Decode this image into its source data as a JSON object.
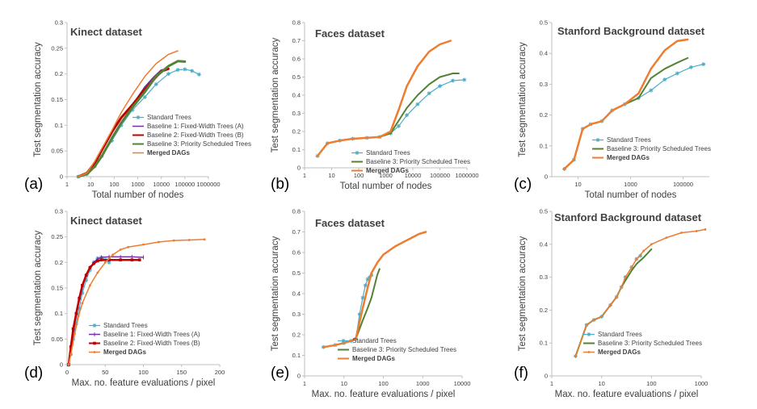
{
  "chart_data": [
    {
      "panel_label": "(a)",
      "title": "Kinect dataset",
      "type": "line",
      "xscale": "log",
      "xlim": [
        1,
        1000000
      ],
      "xticks": [
        1,
        10,
        100,
        1000,
        10000,
        100000,
        1000000
      ],
      "xtick_labels": [
        "1",
        "10",
        "100",
        "1000",
        "10000",
        "100000",
        "1000000"
      ],
      "ylim": [
        0,
        0.3
      ],
      "yticks": [
        0,
        0.05,
        0.1,
        0.15,
        0.2,
        0.25,
        0.3
      ],
      "ytick_labels": [
        "0",
        "0.05",
        "0.1",
        "0.15",
        "0.2",
        "0.25",
        "0.3"
      ],
      "xlabel": "Total number of nodes",
      "ylabel": "Test segmentation accuracy",
      "legend": "center-right",
      "series": [
        {
          "name": "Standard Trees",
          "color": "#4BACC6",
          "marker": "star",
          "width": 1.2,
          "x": [
            3,
            7,
            15,
            30,
            80,
            200,
            600,
            2000,
            6000,
            20000,
            50000,
            100000,
            200000,
            400000
          ],
          "y": [
            0,
            0.005,
            0.02,
            0.04,
            0.07,
            0.1,
            0.13,
            0.155,
            0.18,
            0.2,
            0.208,
            0.209,
            0.206,
            0.199
          ]
        },
        {
          "name": "Baseline 1: Fixed-Width Trees (A)",
          "color": "#7030A0",
          "marker": "none",
          "width": 1.5,
          "x": [
            3,
            7,
            15,
            30,
            80,
            200,
            600,
            2000,
            5000,
            10000,
            20000
          ],
          "y": [
            0,
            0.006,
            0.025,
            0.05,
            0.085,
            0.115,
            0.14,
            0.175,
            0.195,
            0.208,
            0.21
          ]
        },
        {
          "name": "Baseline 2: Fixed-Width Trees (B)",
          "color": "#C00000",
          "marker": "none",
          "width": 3,
          "x": [
            3,
            7,
            15,
            30,
            80,
            200,
            600,
            2000,
            5000,
            10000,
            20000
          ],
          "y": [
            0,
            0.007,
            0.027,
            0.052,
            0.087,
            0.115,
            0.14,
            0.17,
            0.19,
            0.205,
            0.21
          ]
        },
        {
          "name": "Baseline 3: Priority Scheduled Trees",
          "color": "#548235",
          "marker": "none",
          "width": 3,
          "x": [
            3,
            7,
            15,
            30,
            80,
            200,
            600,
            2000,
            6000,
            20000,
            50000,
            100000
          ],
          "y": [
            0,
            0.005,
            0.02,
            0.04,
            0.075,
            0.105,
            0.135,
            0.165,
            0.195,
            0.215,
            0.225,
            0.224
          ]
        },
        {
          "name": "Merged DAGs",
          "color": "#ED7D31",
          "marker": "none",
          "width": 1.5,
          "x": [
            3,
            7,
            15,
            30,
            80,
            200,
            600,
            2000,
            6000,
            20000,
            50000
          ],
          "y": [
            0,
            0.007,
            0.03,
            0.055,
            0.09,
            0.125,
            0.16,
            0.195,
            0.22,
            0.238,
            0.245
          ]
        }
      ]
    },
    {
      "panel_label": "(b)",
      "title": "Faces dataset",
      "type": "line",
      "xscale": "log",
      "xlim": [
        1,
        1000000
      ],
      "xticks": [
        1,
        10,
        100,
        1000,
        10000,
        100000,
        1000000
      ],
      "xtick_labels": [
        "1",
        "10",
        "100",
        "1000",
        "10000",
        "100000",
        "1000000"
      ],
      "ylim": [
        0,
        0.8
      ],
      "yticks": [
        0,
        0.1,
        0.2,
        0.3,
        0.4,
        0.5,
        0.6,
        0.7,
        0.8
      ],
      "ytick_labels": [
        "0",
        "0.1",
        "0.2",
        "0.3",
        "0.4",
        "0.5",
        "0.6",
        "0.7",
        "0.8"
      ],
      "xlabel": "Total number of nodes",
      "ylabel": "Test segmentation accuracy",
      "legend": "center-right",
      "series": [
        {
          "name": "Standard Trees",
          "color": "#4BACC6",
          "marker": "star",
          "width": 1.2,
          "x": [
            3,
            7,
            20,
            60,
            200,
            600,
            1500,
            3000,
            6000,
            15000,
            40000,
            100000,
            300000,
            800000
          ],
          "y": [
            0.065,
            0.135,
            0.15,
            0.16,
            0.165,
            0.17,
            0.19,
            0.23,
            0.29,
            0.35,
            0.41,
            0.45,
            0.48,
            0.485
          ]
        },
        {
          "name": "Baseline 3: Priority Scheduled Trees",
          "color": "#548235",
          "marker": "none",
          "width": 2,
          "x": [
            3,
            7,
            20,
            60,
            200,
            600,
            1500,
            3000,
            6000,
            15000,
            40000,
            100000,
            300000,
            500000
          ],
          "y": [
            0.065,
            0.135,
            0.15,
            0.16,
            0.165,
            0.17,
            0.19,
            0.26,
            0.33,
            0.4,
            0.46,
            0.5,
            0.52,
            0.52
          ]
        },
        {
          "name": "Merged DAGs",
          "color": "#ED7D31",
          "marker": "none",
          "width": 2.5,
          "x": [
            3,
            7,
            20,
            60,
            200,
            600,
            1500,
            3000,
            6000,
            15000,
            40000,
            100000,
            250000
          ],
          "y": [
            0.065,
            0.135,
            0.15,
            0.16,
            0.165,
            0.17,
            0.2,
            0.32,
            0.45,
            0.56,
            0.64,
            0.68,
            0.7
          ]
        }
      ]
    },
    {
      "panel_label": "(c)",
      "title": "Stanford Background dataset",
      "type": "line",
      "xscale": "log",
      "xlim": [
        1,
        1000000
      ],
      "xticks": [
        10,
        1000,
        100000
      ],
      "xtick_labels": [
        "10",
        "1000",
        "100000"
      ],
      "ylim": [
        0,
        0.5
      ],
      "yticks": [
        0,
        0.1,
        0.2,
        0.3,
        0.4,
        0.5
      ],
      "ytick_labels": [
        "0",
        "0.1",
        "0.2",
        "0.3",
        "0.4",
        "0.5"
      ],
      "xlabel": "Total number of nodes",
      "ylabel": "Test segmentation accuracy",
      "legend": "bottom-right",
      "series": [
        {
          "name": "Standard Trees",
          "color": "#4BACC6",
          "marker": "star",
          "width": 1.2,
          "x": [
            3,
            7,
            15,
            30,
            80,
            200,
            600,
            2000,
            6000,
            20000,
            60000,
            200000,
            600000
          ],
          "y": [
            0.025,
            0.055,
            0.155,
            0.17,
            0.18,
            0.215,
            0.235,
            0.255,
            0.28,
            0.315,
            0.335,
            0.355,
            0.365
          ]
        },
        {
          "name": "Baseline 3: Priority Scheduled Trees",
          "color": "#548235",
          "marker": "none",
          "width": 2,
          "x": [
            3,
            7,
            15,
            30,
            80,
            200,
            600,
            2000,
            6000,
            20000,
            60000,
            150000
          ],
          "y": [
            0.025,
            0.055,
            0.155,
            0.17,
            0.18,
            0.215,
            0.235,
            0.255,
            0.32,
            0.35,
            0.37,
            0.385
          ]
        },
        {
          "name": "Merged DAGs",
          "color": "#ED7D31",
          "marker": "none",
          "width": 2.5,
          "x": [
            3,
            7,
            15,
            30,
            80,
            200,
            600,
            2000,
            6000,
            20000,
            60000,
            150000
          ],
          "y": [
            0.025,
            0.055,
            0.155,
            0.17,
            0.18,
            0.215,
            0.235,
            0.27,
            0.35,
            0.41,
            0.44,
            0.445
          ]
        }
      ]
    },
    {
      "panel_label": "(d)",
      "title": "Kinect dataset",
      "type": "line",
      "xscale": "linear",
      "xlim": [
        0,
        200
      ],
      "xticks": [
        0,
        50,
        100,
        150,
        200
      ],
      "xtick_labels": [
        "0",
        "50",
        "100",
        "150",
        "200"
      ],
      "ylim": [
        0,
        0.3
      ],
      "yticks": [
        0,
        0.05,
        0.1,
        0.15,
        0.2,
        0.25,
        0.3
      ],
      "ytick_labels": [
        "0",
        "0.05",
        "0.1",
        "0.15",
        "0.2",
        "0.25",
        "0.3"
      ],
      "xlabel": "Max. no. feature evaluations / pixel",
      "ylabel": "Test segmentation accuracy",
      "legend": "bottom-center",
      "series": [
        {
          "name": "Standard Trees",
          "color": "#4BACC6",
          "marker": "star",
          "width": 1.2,
          "x": [
            2,
            5,
            8,
            12,
            16,
            20,
            25,
            30,
            35,
            40,
            45,
            50,
            55
          ],
          "y": [
            0,
            0.02,
            0.05,
            0.08,
            0.11,
            0.14,
            0.165,
            0.185,
            0.2,
            0.208,
            0.21,
            0.205,
            0.2
          ]
        },
        {
          "name": "Baseline 1: Fixed-Width Trees (A)",
          "color": "#7030A0",
          "marker": "tick",
          "width": 1.5,
          "x": [
            2,
            5,
            8,
            12,
            16,
            20,
            25,
            30,
            35,
            40,
            45,
            55,
            70,
            85,
            100
          ],
          "y": [
            0,
            0.03,
            0.06,
            0.095,
            0.125,
            0.15,
            0.175,
            0.19,
            0.2,
            0.207,
            0.21,
            0.211,
            0.211,
            0.211,
            0.21
          ]
        },
        {
          "name": "Baseline 2: Fixed-Width Trees (B)",
          "color": "#C00000",
          "marker": "square",
          "width": 2.5,
          "x": [
            2,
            5,
            8,
            12,
            16,
            20,
            25,
            30,
            35,
            40,
            45,
            55,
            70,
            85,
            95
          ],
          "y": [
            0,
            0.035,
            0.07,
            0.1,
            0.13,
            0.155,
            0.175,
            0.19,
            0.198,
            0.203,
            0.205,
            0.205,
            0.205,
            0.205,
            0.205
          ]
        },
        {
          "name": "Merged DAGs",
          "color": "#ED7D31",
          "marker": "dot",
          "width": 1.5,
          "x": [
            2,
            5,
            10,
            15,
            20,
            30,
            40,
            50,
            60,
            70,
            80,
            100,
            120,
            140,
            160,
            180
          ],
          "y": [
            0,
            0.02,
            0.06,
            0.095,
            0.12,
            0.155,
            0.18,
            0.2,
            0.215,
            0.225,
            0.23,
            0.235,
            0.24,
            0.243,
            0.244,
            0.245
          ]
        }
      ]
    },
    {
      "panel_label": "(e)",
      "title": "Faces dataset",
      "type": "line",
      "xscale": "log",
      "xlim": [
        1,
        10000
      ],
      "xticks": [
        1,
        10,
        100,
        1000,
        10000
      ],
      "xtick_labels": [
        "1",
        "10",
        "100",
        "1000",
        "10000"
      ],
      "ylim": [
        0,
        0.8
      ],
      "yticks": [
        0,
        0.1,
        0.2,
        0.3,
        0.4,
        0.5,
        0.6,
        0.7,
        0.8
      ],
      "ytick_labels": [
        "0",
        "0.1",
        "0.2",
        "0.3",
        "0.4",
        "0.5",
        "0.6",
        "0.7",
        "0.8"
      ],
      "xlabel": "Max. no. feature evaluations / pixel",
      "ylabel": "Test segmentation accuracy",
      "legend": "bottom-center",
      "series": [
        {
          "name": "Standard Trees",
          "color": "#4BACC6",
          "marker": "star",
          "width": 1.2,
          "x": [
            3,
            6,
            10,
            15,
            20,
            25,
            30,
            35,
            40,
            45,
            50
          ],
          "y": [
            0.14,
            0.15,
            0.16,
            0.17,
            0.18,
            0.3,
            0.38,
            0.44,
            0.47,
            0.48,
            0.49
          ]
        },
        {
          "name": "Baseline 3: Priority Scheduled Trees",
          "color": "#548235",
          "marker": "none",
          "width": 2,
          "x": [
            3,
            6,
            10,
            15,
            20,
            30,
            40,
            50,
            60,
            70,
            80
          ],
          "y": [
            0.14,
            0.15,
            0.16,
            0.17,
            0.18,
            0.27,
            0.33,
            0.38,
            0.44,
            0.49,
            0.52
          ]
        },
        {
          "name": "Merged DAGs",
          "color": "#ED7D31",
          "marker": "none",
          "width": 2.5,
          "x": [
            3,
            6,
            10,
            15,
            20,
            30,
            40,
            50,
            70,
            100,
            200,
            400,
            800,
            1200
          ],
          "y": [
            0.14,
            0.15,
            0.16,
            0.17,
            0.18,
            0.33,
            0.43,
            0.5,
            0.55,
            0.59,
            0.63,
            0.66,
            0.69,
            0.7
          ]
        }
      ]
    },
    {
      "panel_label": "(f)",
      "title": "Stanford Background dataset",
      "type": "line",
      "xscale": "log",
      "xlim": [
        1,
        1000
      ],
      "xticks": [
        1,
        10,
        100,
        1000
      ],
      "xtick_labels": [
        "1",
        "10",
        "100",
        "1000"
      ],
      "ylim": [
        0,
        0.5
      ],
      "yticks": [
        0,
        0.1,
        0.2,
        0.3,
        0.4,
        0.5
      ],
      "ytick_labels": [
        "0",
        "0.1",
        "0.2",
        "0.3",
        "0.4",
        "0.5"
      ],
      "xlabel": "Max. no. feature evaluations / pixel",
      "ylabel": "Test segmentation accuracy",
      "legend": "bottom-center",
      "series": [
        {
          "name": "Standard Trees",
          "color": "#4BACC6",
          "marker": "star",
          "width": 1.2,
          "x": [
            3,
            5,
            7,
            10,
            15,
            20,
            25,
            30,
            40,
            50,
            60
          ],
          "y": [
            0.06,
            0.155,
            0.17,
            0.18,
            0.215,
            0.24,
            0.27,
            0.3,
            0.33,
            0.355,
            0.365
          ]
        },
        {
          "name": "Baseline 3: Priority Scheduled Trees",
          "color": "#548235",
          "marker": "none",
          "width": 2,
          "x": [
            3,
            5,
            7,
            10,
            15,
            20,
            25,
            30,
            40,
            50,
            70,
            100
          ],
          "y": [
            0.06,
            0.155,
            0.17,
            0.18,
            0.215,
            0.24,
            0.27,
            0.29,
            0.32,
            0.34,
            0.36,
            0.385
          ]
        },
        {
          "name": "Merged DAGs",
          "color": "#ED7D31",
          "marker": "dot",
          "width": 1.5,
          "x": [
            3,
            5,
            7,
            10,
            15,
            20,
            25,
            30,
            40,
            50,
            70,
            100,
            200,
            400,
            800,
            1200
          ],
          "y": [
            0.06,
            0.155,
            0.17,
            0.18,
            0.215,
            0.24,
            0.27,
            0.3,
            0.33,
            0.355,
            0.38,
            0.4,
            0.42,
            0.435,
            0.44,
            0.445
          ]
        }
      ]
    }
  ]
}
